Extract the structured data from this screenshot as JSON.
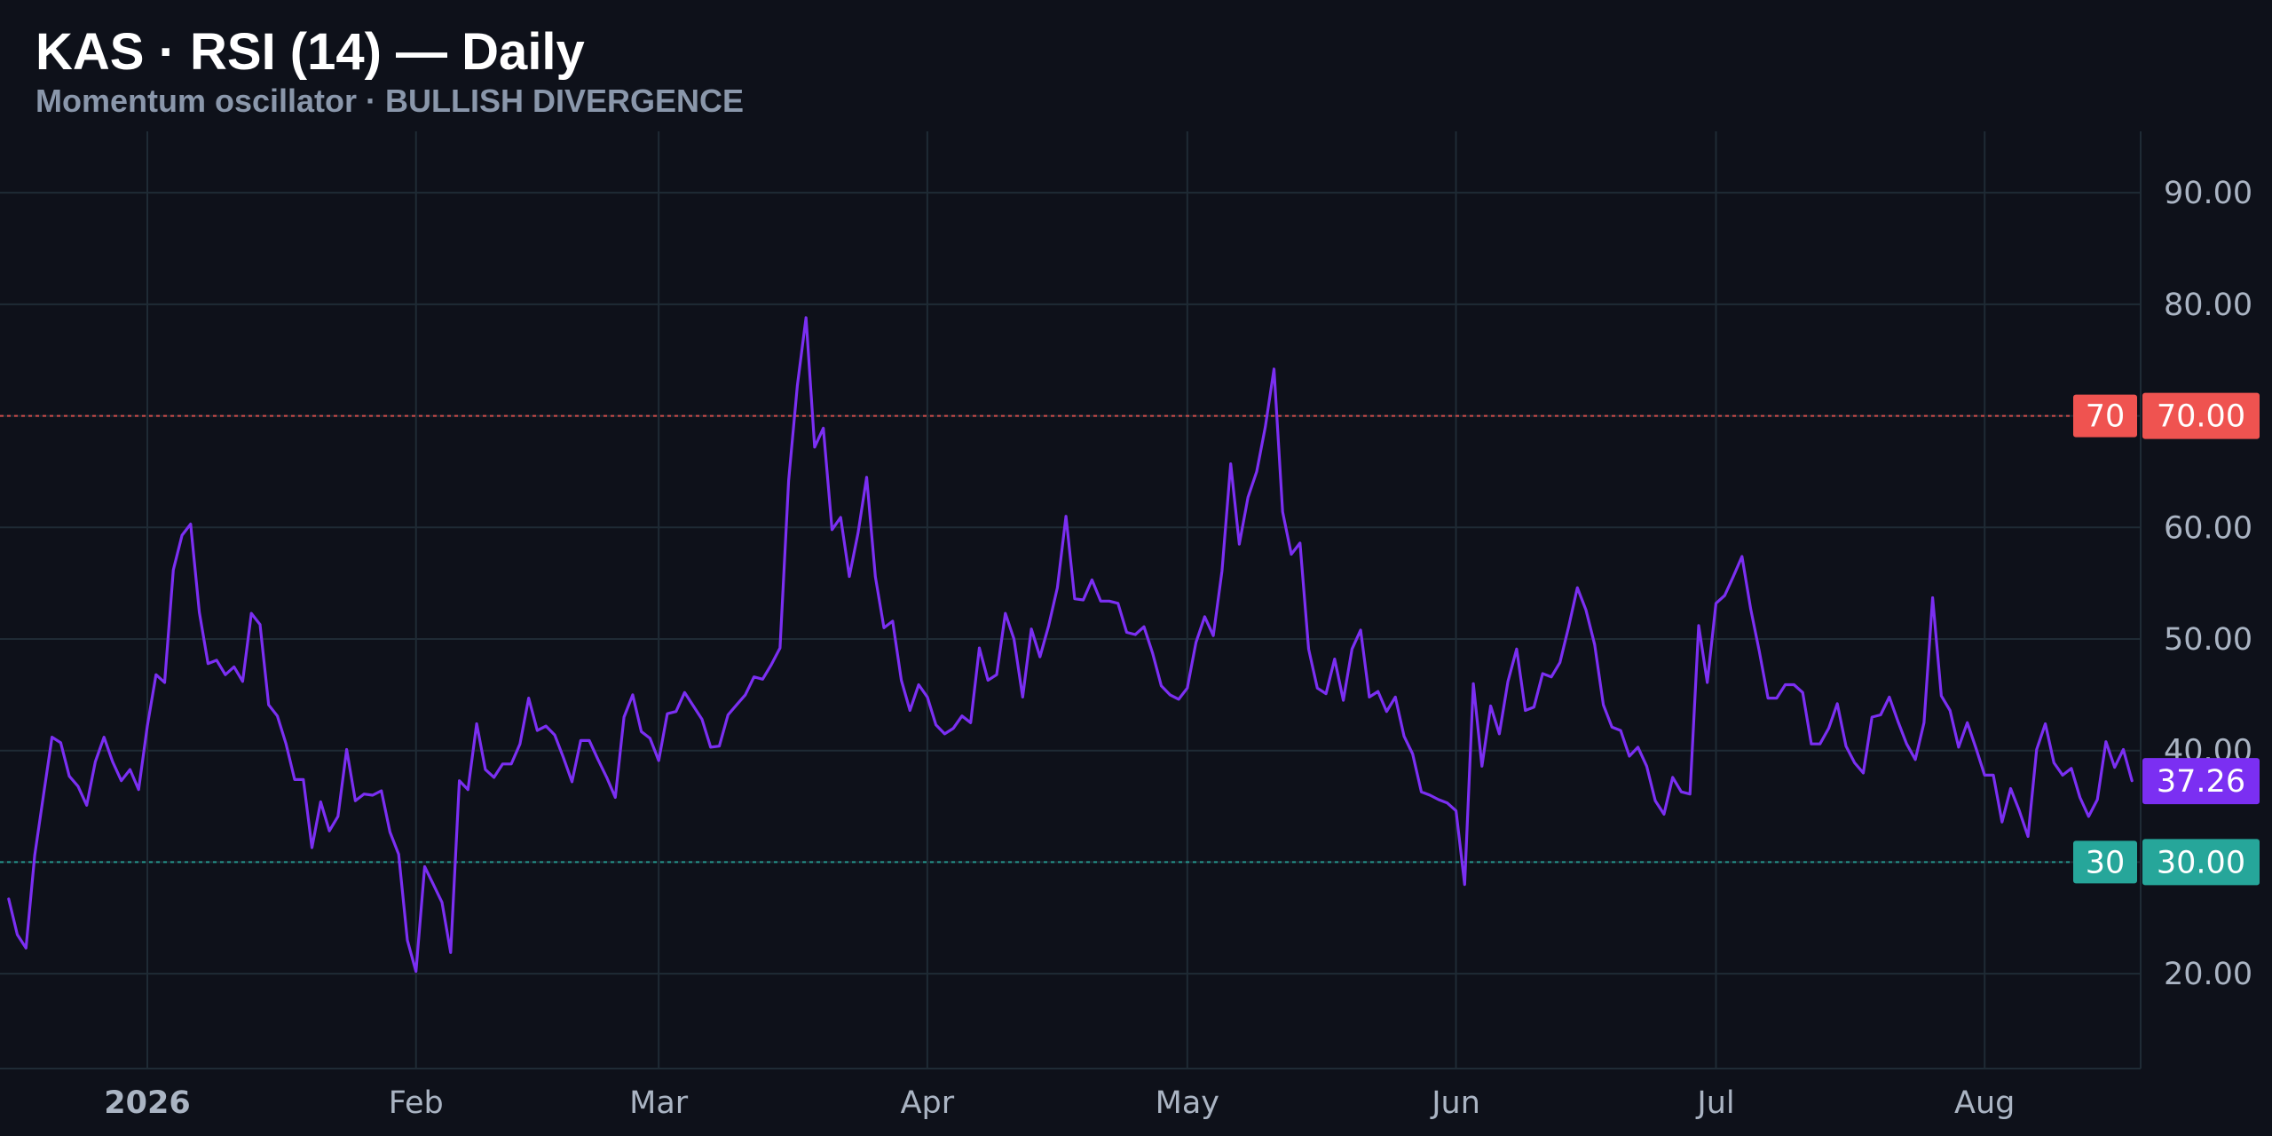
{
  "header": {
    "title": "KAS · RSI (14) — Daily",
    "subtitle": "Momentum oscillator · BULLISH DIVERGENCE"
  },
  "colors": {
    "background": "#0e111a",
    "grid": "#1f2b35",
    "rsi_line": "#7b2ff2",
    "overbought": "#ef5350",
    "oversold": "#26a69a",
    "axis_text": "#aab4c3"
  },
  "chart_data": {
    "type": "line",
    "ylim": [
      11.5,
      95.5
    ],
    "y_ticks": [
      "20.00",
      "30.00",
      "40.00",
      "50.00",
      "60.00",
      "70.00",
      "80.00",
      "90.00"
    ],
    "x_ticks": [
      {
        "date": "2026-01-01",
        "label": "2026",
        "bold": true
      },
      {
        "date": "2026-02-01",
        "label": "Feb",
        "bold": false
      },
      {
        "date": "2026-03-01",
        "label": "Mar",
        "bold": false
      },
      {
        "date": "2026-04-01",
        "label": "Apr",
        "bold": false
      },
      {
        "date": "2026-05-01",
        "label": "May",
        "bold": false
      },
      {
        "date": "2026-06-01",
        "label": "Jun",
        "bold": false
      },
      {
        "date": "2026-07-01",
        "label": "Jul",
        "bold": false
      },
      {
        "date": "2026-08-01",
        "label": "Aug",
        "bold": false
      }
    ],
    "x_range": [
      "2025-12-15",
      "2026-08-19"
    ],
    "levels": [
      {
        "value": 70,
        "label": "70",
        "price_label": "70.00",
        "color": "#ef5350"
      },
      {
        "value": 30,
        "label": "30",
        "price_label": "30.00",
        "color": "#26a69a"
      }
    ],
    "last_value": {
      "value": 37.26,
      "label": "37.26"
    },
    "series": [
      {
        "x_start": "2025-12-16",
        "step_days": 1,
        "values": [
          26.7,
          23.5,
          22.3,
          30.6,
          35.9,
          41.2,
          40.7,
          37.7,
          36.8,
          35.1,
          39.0,
          41.2,
          39.0,
          37.3,
          38.3,
          36.5,
          42.2,
          46.8,
          46.1,
          56.2,
          59.3,
          60.3,
          52.4,
          47.8,
          48.1,
          46.8,
          47.5,
          46.2,
          52.3,
          51.3,
          44.1,
          43.1,
          40.6,
          37.4,
          37.4,
          31.3,
          35.4,
          32.8,
          34.1,
          40.1,
          35.5,
          36.1,
          36.0,
          36.4,
          32.7,
          30.7,
          23.0,
          20.2,
          29.6,
          28.0,
          26.4,
          21.9,
          37.3,
          36.5,
          42.4,
          38.3,
          37.6,
          38.8,
          38.8,
          40.6,
          44.7,
          41.8,
          42.2,
          41.4,
          39.4,
          37.2,
          40.9,
          40.9,
          39.2,
          37.6,
          35.8,
          43.0,
          45.0,
          41.7,
          41.1,
          39.1,
          43.3,
          43.5,
          45.2,
          44.0,
          42.8,
          40.3,
          40.4,
          43.2,
          44.1,
          45.0,
          46.6,
          46.4,
          47.7,
          49.2,
          64.2,
          72.7,
          78.8,
          67.2,
          68.9,
          59.8,
          60.9,
          55.6,
          59.5,
          64.5,
          55.6,
          51.0,
          51.6,
          46.3,
          43.6,
          45.9,
          44.8,
          42.3,
          41.5,
          42.0,
          43.1,
          42.5,
          49.2,
          46.3,
          46.8,
          52.3,
          50.0,
          44.8,
          50.9,
          48.4,
          51.2,
          54.6,
          61.0,
          53.6,
          53.5,
          55.3,
          53.4,
          53.4,
          53.2,
          50.6,
          50.4,
          51.1,
          48.7,
          45.8,
          45.0,
          44.6,
          45.6,
          49.7,
          52.0,
          50.3,
          56.1,
          65.7,
          58.5,
          62.7,
          65.0,
          69.0,
          74.2,
          61.4,
          57.6,
          58.6,
          49.1,
          45.6,
          45.1,
          48.2,
          44.5,
          49.1,
          50.8,
          44.8,
          45.3,
          43.5,
          44.8,
          41.3,
          39.7,
          36.3,
          36.0,
          35.6,
          35.3,
          34.6,
          28.0,
          46.0,
          38.6,
          44.0,
          41.5,
          46.2,
          49.1,
          43.6,
          43.9,
          46.9,
          46.6,
          47.9,
          51.1,
          54.6,
          52.6,
          49.5,
          44.1,
          42.1,
          41.8,
          39.5,
          40.3,
          38.6,
          35.5,
          34.3,
          37.6,
          36.3,
          36.1,
          51.2,
          46.1,
          53.2,
          53.9,
          55.6,
          57.4,
          52.7,
          48.9,
          44.7,
          44.7,
          45.9,
          45.9,
          45.2,
          40.6,
          40.6,
          42.0,
          44.2,
          40.4,
          38.9,
          38.0,
          43.0,
          43.2,
          44.8,
          42.6,
          40.6,
          39.2,
          42.5,
          53.7,
          44.9,
          43.6,
          40.3,
          42.5,
          40.2,
          37.8,
          37.8,
          33.6,
          36.6,
          34.6,
          32.3,
          40.1,
          42.4,
          38.9,
          37.8,
          38.4,
          35.8,
          34.1,
          35.6,
          40.8,
          38.5,
          40.1,
          37.3
        ]
      }
    ]
  }
}
